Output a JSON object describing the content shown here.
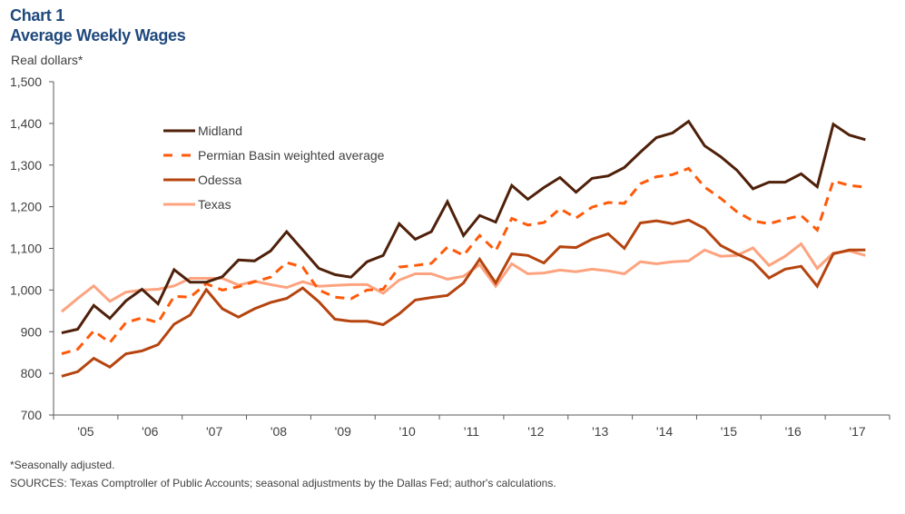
{
  "header": {
    "chart_number": "Chart 1",
    "title": "Average Weekly Wages",
    "unit": "Real dollars*"
  },
  "footer": {
    "footnote": "*Seasonally adjusted.",
    "sources": "SOURCES: Texas Comptroller of Public Accounts; seasonal adjustments by the Dallas Fed; author's calculations."
  },
  "chart_data": {
    "type": "line",
    "title": "Average Weekly Wages",
    "ylabel": "Real dollars*",
    "xlabel": "",
    "frequency": "quarterly",
    "x_start": "2005Q1",
    "x_end": "2017Q3",
    "ylim": [
      700,
      1500
    ],
    "yticks": [
      700,
      800,
      900,
      1000,
      1100,
      1200,
      1300,
      1400,
      1500
    ],
    "ytick_labels": [
      "700",
      "800",
      "900",
      "1,000",
      "1,100",
      "1,200",
      "1,300",
      "1,400",
      "1,500"
    ],
    "xtick_labels": [
      "'05",
      "'06",
      "'07",
      "'08",
      "'09",
      "'10",
      "'11",
      "'12",
      "'13",
      "'14",
      "'15",
      "'16",
      "'17"
    ],
    "grid": false,
    "legend_position": "top-left",
    "series": [
      {
        "name": "Midland",
        "color": "#4f200a",
        "style": "solid",
        "values": [
          897,
          906,
          963,
          932,
          974,
          1002,
          967,
          1049,
          1019,
          1019,
          1032,
          1072,
          1070,
          1094,
          1140,
          1096,
          1052,
          1037,
          1031,
          1068,
          1083,
          1159,
          1122,
          1140,
          1212,
          1131,
          1179,
          1163,
          1251,
          1218,
          1246,
          1270,
          1235,
          1268,
          1274,
          1294,
          1331,
          1366,
          1377,
          1405,
          1346,
          1320,
          1288,
          1243,
          1259,
          1259,
          1279,
          1248,
          1398,
          1372,
          1361
        ]
      },
      {
        "name": "Permian Basin weighted average",
        "color": "#ff5a0a",
        "style": "dashed",
        "values": [
          847,
          858,
          902,
          874,
          922,
          933,
          922,
          985,
          983,
          1015,
          1000,
          1008,
          1020,
          1031,
          1066,
          1055,
          1000,
          983,
          979,
          1000,
          1002,
          1055,
          1059,
          1064,
          1103,
          1083,
          1131,
          1094,
          1172,
          1156,
          1162,
          1195,
          1173,
          1199,
          1210,
          1208,
          1255,
          1272,
          1277,
          1292,
          1247,
          1220,
          1188,
          1166,
          1159,
          1170,
          1179,
          1144,
          1262,
          1251,
          1247
        ]
      },
      {
        "name": "Odessa",
        "color": "#b5440f",
        "style": "solid",
        "values": [
          793,
          804,
          836,
          815,
          847,
          854,
          869,
          918,
          940,
          1001,
          955,
          935,
          955,
          970,
          980,
          1005,
          972,
          930,
          925,
          925,
          917,
          943,
          976,
          982,
          987,
          1017,
          1074,
          1017,
          1087,
          1083,
          1065,
          1104,
          1102,
          1122,
          1135,
          1100,
          1161,
          1166,
          1159,
          1168,
          1148,
          1107,
          1087,
          1069,
          1029,
          1050,
          1057,
          1009,
          1087,
          1096,
          1096
        ]
      },
      {
        "name": "Texas",
        "color": "#fda37f",
        "style": "solid",
        "values": [
          948,
          980,
          1010,
          973,
          995,
          1000,
          1002,
          1010,
          1028,
          1028,
          1028,
          1012,
          1021,
          1013,
          1006,
          1020,
          1009,
          1011,
          1013,
          1013,
          992,
          1024,
          1039,
          1039,
          1026,
          1033,
          1061,
          1009,
          1063,
          1039,
          1041,
          1048,
          1044,
          1050,
          1046,
          1039,
          1068,
          1063,
          1068,
          1070,
          1096,
          1081,
          1083,
          1101,
          1059,
          1081,
          1111,
          1052,
          1089,
          1094,
          1083
        ]
      }
    ]
  }
}
